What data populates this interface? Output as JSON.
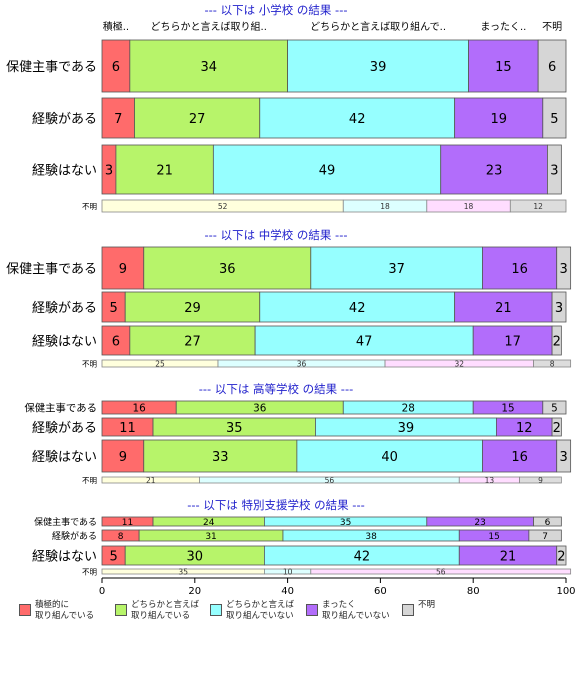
{
  "chart_data": {
    "type": "bar",
    "orientation": "horizontal",
    "stacked": true,
    "category_labels": [
      "積極..",
      "どちらかと言えば取り組..",
      "どちらかと言えば取り組んで..",
      "まったく..",
      "不明"
    ],
    "legend": [
      {
        "label": "積極的に\n取り組んでいる",
        "color": "#ff6b6b"
      },
      {
        "label": "どちらかと言えば\n取り組んでいる",
        "color": "#b7f46a"
      },
      {
        "label": "どちらかと言えば\n取り組んでいない",
        "color": "#96ffff"
      },
      {
        "label": "まったく\n取り組んでいない",
        "color": "#b26dfb"
      },
      {
        "label": "不明",
        "color": "#d6d6d6"
      }
    ],
    "unknown_colors": [
      "#ffffdd",
      "#ddffff",
      "#ffddff",
      "#dddddd"
    ],
    "xlim": [
      0,
      100
    ],
    "xticks": [
      0,
      20,
      40,
      60,
      80,
      100
    ],
    "panels": [
      {
        "title": "--- 以下は 小学校 の結果 ---",
        "rows": [
          {
            "label": "保健主事である",
            "values": [
              6,
              34,
              39,
              15,
              6
            ]
          },
          {
            "label": "経験がある",
            "values": [
              7,
              27,
              42,
              19,
              5
            ]
          },
          {
            "label": "経験はない",
            "values": [
              3,
              21,
              49,
              23,
              3
            ]
          }
        ],
        "unknown": {
          "label": "不明",
          "values": [
            52,
            18,
            18,
            12
          ]
        }
      },
      {
        "title": "--- 以下は 中学校 の結果 ---",
        "rows": [
          {
            "label": "保健主事である",
            "values": [
              9,
              36,
              37,
              16,
              3
            ]
          },
          {
            "label": "経験がある",
            "values": [
              5,
              29,
              42,
              21,
              3
            ]
          },
          {
            "label": "経験はない",
            "values": [
              6,
              27,
              47,
              17,
              2
            ]
          }
        ],
        "unknown": {
          "label": "不明",
          "values": [
            25,
            36,
            32,
            8
          ]
        }
      },
      {
        "title": "--- 以下は 高等学校 の結果 ---",
        "rows": [
          {
            "label": "保健主事である",
            "values": [
              16,
              36,
              28,
              15,
              5
            ]
          },
          {
            "label": "経験がある",
            "values": [
              11,
              35,
              39,
              12,
              2
            ]
          },
          {
            "label": "経験はない",
            "values": [
              9,
              33,
              40,
              16,
              3
            ]
          }
        ],
        "unknown": {
          "label": "不明",
          "values": [
            21,
            56,
            13,
            9
          ]
        }
      },
      {
        "title": "--- 以下は 特別支援学校 の結果 ---",
        "rows": [
          {
            "label": "保健主事である",
            "values": [
              11,
              24,
              35,
              23,
              6
            ]
          },
          {
            "label": "経験がある",
            "values": [
              8,
              31,
              38,
              15,
              7
            ]
          },
          {
            "label": "経験はない",
            "values": [
              5,
              30,
              42,
              21,
              2
            ]
          }
        ],
        "unknown": {
          "label": "不明",
          "values": [
            35,
            10,
            56
          ]
        }
      }
    ]
  }
}
